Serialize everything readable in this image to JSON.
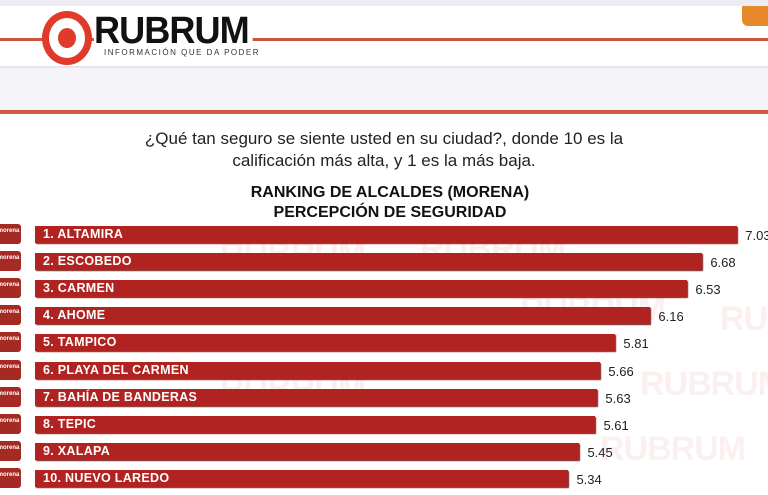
{
  "header": {
    "brand": "RUBRUM",
    "tagline": "INFORMACIÓN QUE DA PODER"
  },
  "question": {
    "line1": "¿Qué tan seguro se siente usted en su ciudad?, donde 10 es la",
    "line2": "calificación más alta, y  1 es la más baja."
  },
  "chart_data": {
    "type": "bar",
    "orientation": "horizontal",
    "title": "RANKING DE ALCALDES  (MORENA)",
    "subtitle": "PERCEPCIÓN DE SEGURIDAD",
    "categories": [
      "1. ALTAMIRA",
      "2. ESCOBEDO",
      "3. CARMEN",
      "4. AHOME",
      "5. TAMPICO",
      "6. PLAYA DEL CARMEN",
      "7. BAHÍA DE BANDERAS",
      "8. TEPIC",
      "9. XALAPA",
      "10. NUEVO LAREDO"
    ],
    "values": [
      7.03,
      6.68,
      6.53,
      6.16,
      5.81,
      5.66,
      5.63,
      5.61,
      5.45,
      5.34
    ],
    "value_labels": [
      "7.03",
      "6.68",
      "6.53",
      "6.16",
      "5.81",
      "5.66",
      "5.63",
      "5.61",
      "5.45",
      "5.34"
    ],
    "xlim": [
      0,
      7.03
    ],
    "grid": false,
    "bar_color": "#b02320",
    "party_badge": "morena"
  },
  "watermark": "RUBRUM"
}
